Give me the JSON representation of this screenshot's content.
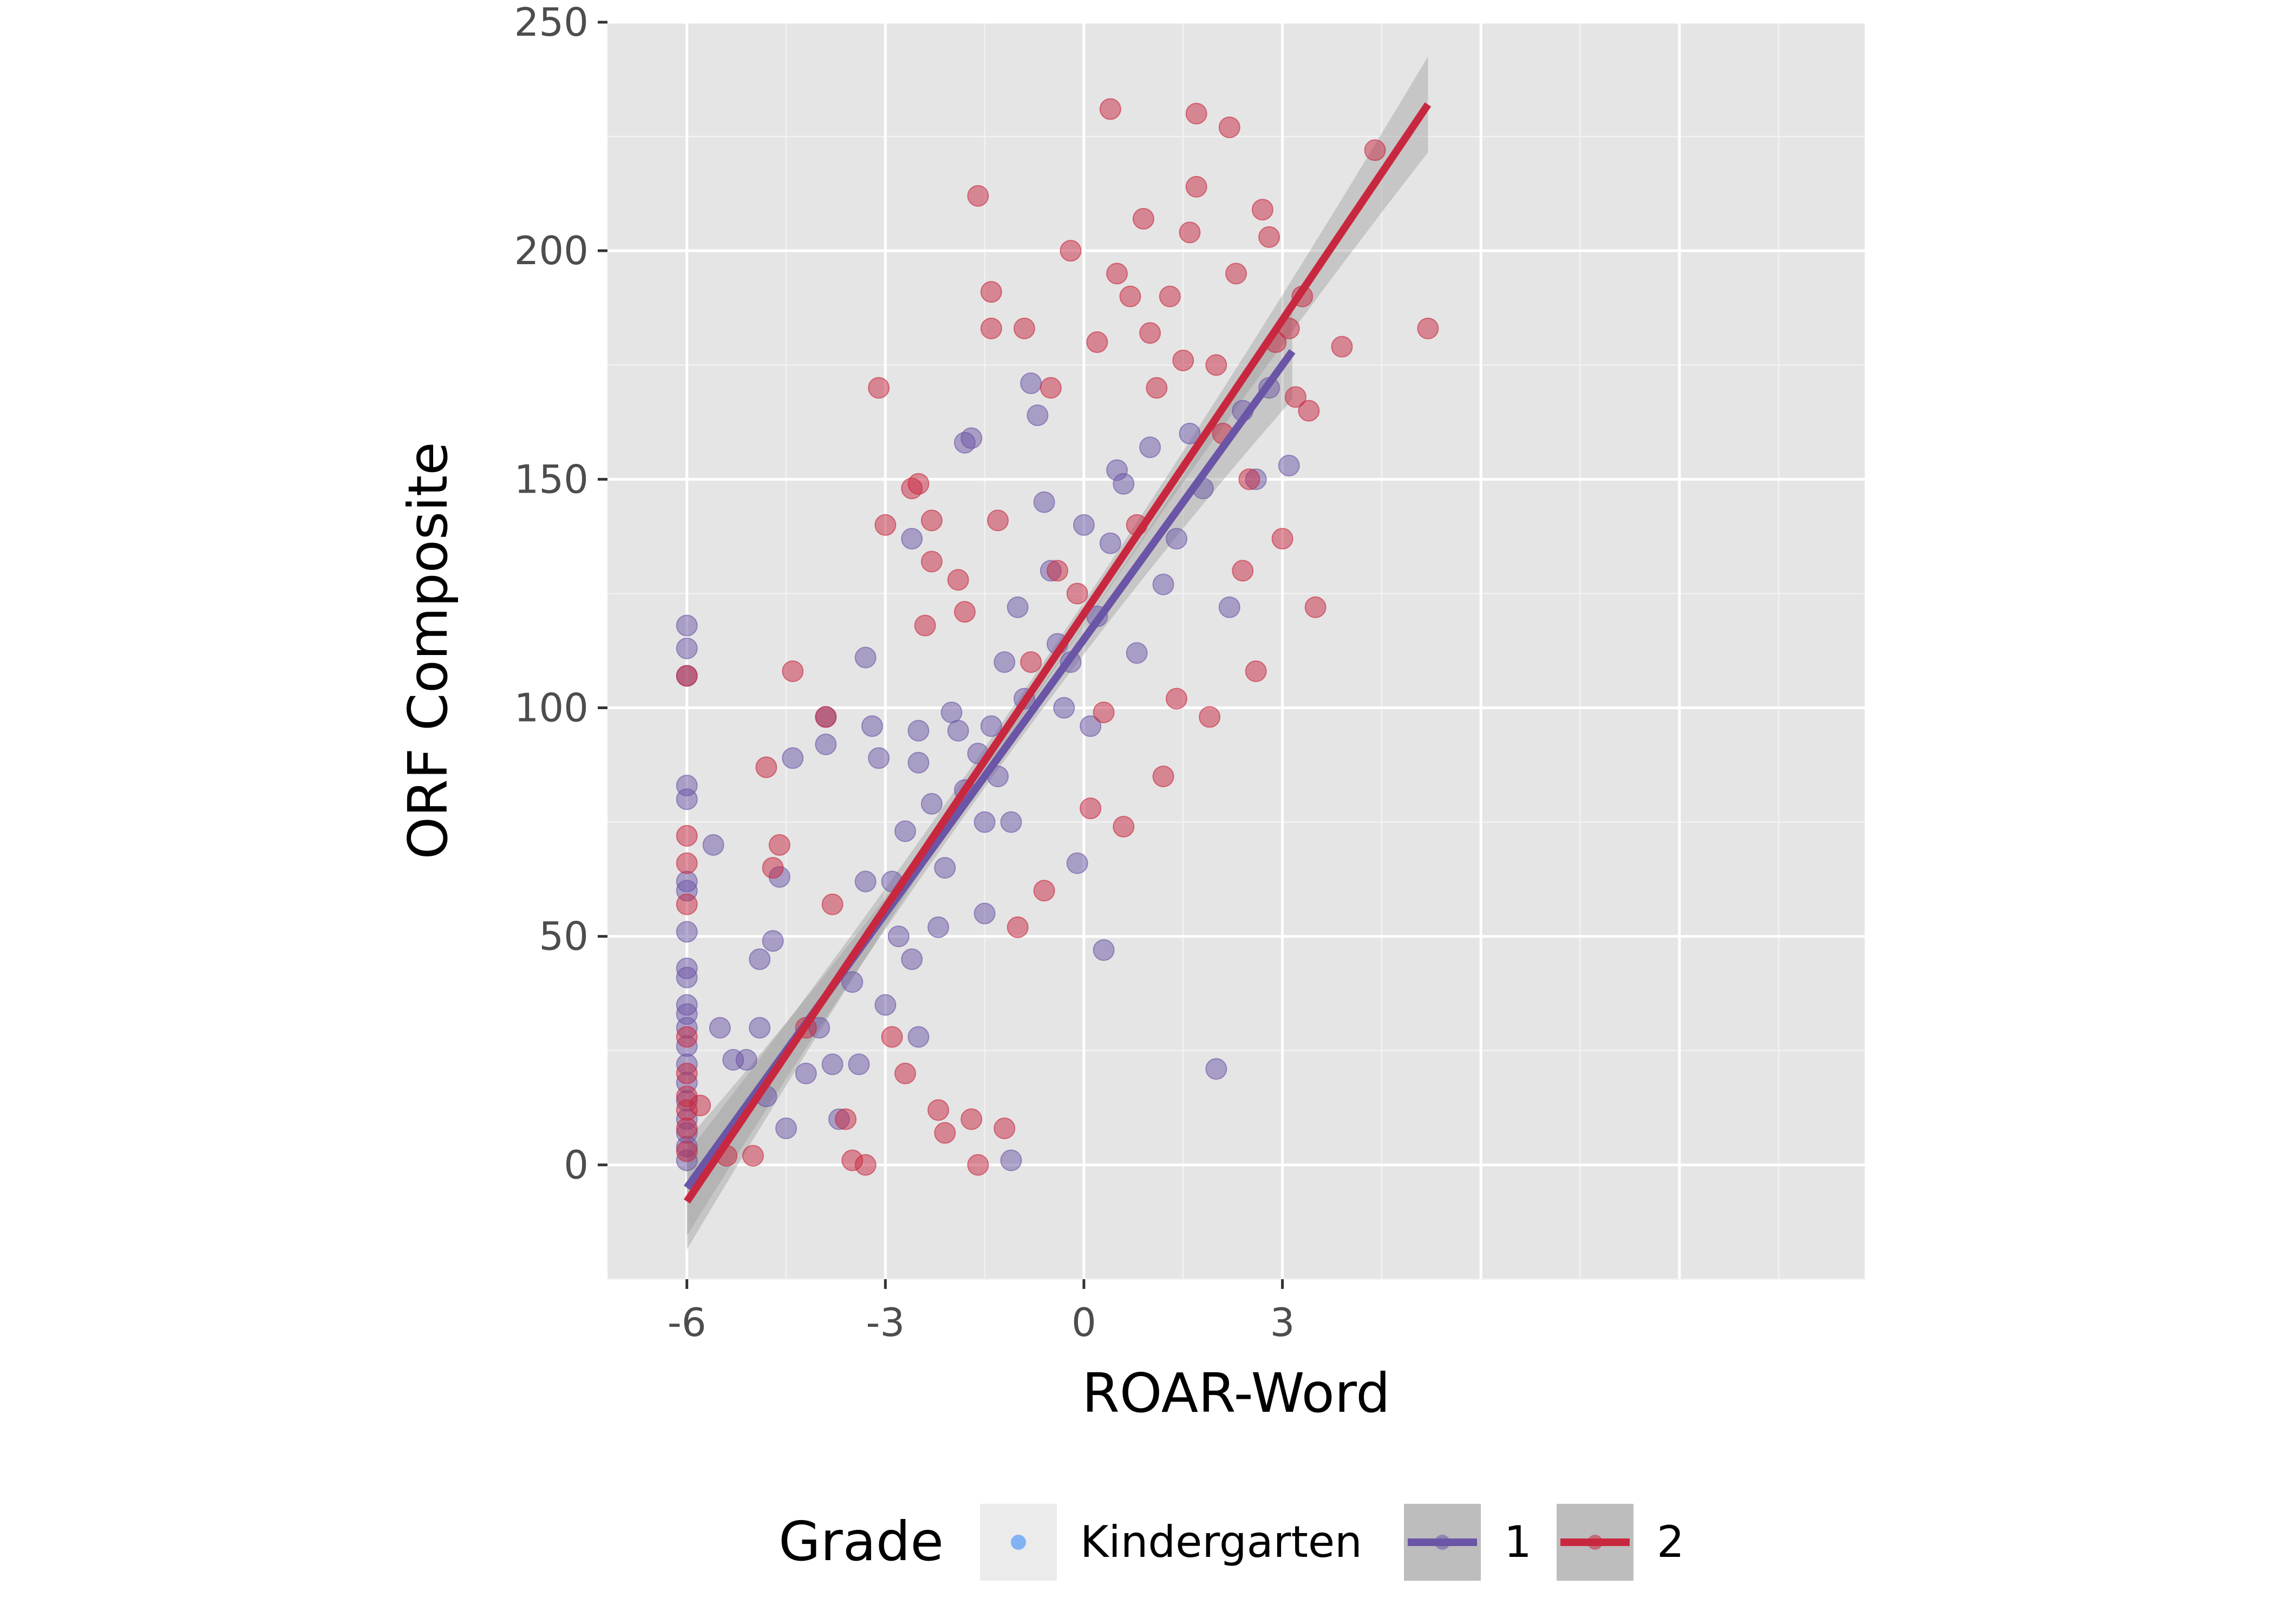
{
  "chart_data": {
    "type": "scatter",
    "title": "",
    "xlabel": "ROAR-Word",
    "ylabel": "ORF Composite",
    "xlim": [
      -7.2,
      11.8
    ],
    "ylim": [
      -25,
      250
    ],
    "x_ticks": [
      -6,
      -3,
      0,
      3
    ],
    "x_tick_labels": [
      "-6",
      "-3",
      "0",
      "3"
    ],
    "y_ticks": [
      0,
      50,
      100,
      150,
      200,
      250
    ],
    "y_tick_labels": [
      "0",
      "50",
      "100",
      "150",
      "200",
      "250"
    ],
    "grid": true,
    "panel_background": "#e5e5e5",
    "legend": {
      "title": "Grade",
      "position": "bottom",
      "entries": [
        {
          "label": "Kindergarten",
          "color": "#6fa8f5",
          "has_line": false
        },
        {
          "label": "1",
          "color": "#6b55a6",
          "has_line": true
        },
        {
          "label": "2",
          "color": "#c8283f",
          "has_line": true
        }
      ]
    },
    "series": [
      {
        "name": "1",
        "color": "#6b55a6",
        "points": [
          [
            -6,
            118
          ],
          [
            -6,
            113
          ],
          [
            -6,
            107
          ],
          [
            -6,
            83
          ],
          [
            -6,
            80
          ],
          [
            -6,
            62
          ],
          [
            -6,
            60
          ],
          [
            -6,
            51
          ],
          [
            -6,
            43
          ],
          [
            -6,
            41
          ],
          [
            -6,
            35
          ],
          [
            -6,
            33
          ],
          [
            -6,
            30
          ],
          [
            -6,
            26
          ],
          [
            -6,
            22
          ],
          [
            -6,
            18
          ],
          [
            -6,
            14
          ],
          [
            -6,
            10
          ],
          [
            -6,
            7
          ],
          [
            -6,
            4
          ],
          [
            -6,
            1
          ],
          [
            -5.6,
            70
          ],
          [
            -5.5,
            30
          ],
          [
            -5.3,
            23
          ],
          [
            -5.1,
            23
          ],
          [
            -4.9,
            45
          ],
          [
            -4.9,
            30
          ],
          [
            -4.4,
            89
          ],
          [
            -4.6,
            63
          ],
          [
            -4.7,
            49
          ],
          [
            -4.8,
            15
          ],
          [
            -4.5,
            8
          ],
          [
            -4.2,
            20
          ],
          [
            -4.0,
            30
          ],
          [
            -3.9,
            98
          ],
          [
            -3.9,
            92
          ],
          [
            -3.8,
            22
          ],
          [
            -3.7,
            10
          ],
          [
            -3.5,
            40
          ],
          [
            -3.4,
            22
          ],
          [
            -3.3,
            62
          ],
          [
            -3.3,
            111
          ],
          [
            -3.2,
            96
          ],
          [
            -3.1,
            89
          ],
          [
            -3.0,
            35
          ],
          [
            -2.9,
            62
          ],
          [
            -2.8,
            50
          ],
          [
            -2.7,
            73
          ],
          [
            -2.6,
            45
          ],
          [
            -2.6,
            137
          ],
          [
            -2.5,
            95
          ],
          [
            -2.5,
            88
          ],
          [
            -2.5,
            28
          ],
          [
            -2.3,
            79
          ],
          [
            -2.2,
            52
          ],
          [
            -2.1,
            65
          ],
          [
            -2.0,
            99
          ],
          [
            -1.9,
            95
          ],
          [
            -1.8,
            82
          ],
          [
            -1.8,
            158
          ],
          [
            -1.7,
            159
          ],
          [
            -1.6,
            90
          ],
          [
            -1.5,
            75
          ],
          [
            -1.5,
            55
          ],
          [
            -1.4,
            96
          ],
          [
            -1.3,
            85
          ],
          [
            -1.2,
            110
          ],
          [
            -1.1,
            1
          ],
          [
            -1.1,
            75
          ],
          [
            -1.0,
            122
          ],
          [
            -0.9,
            102
          ],
          [
            -0.8,
            171
          ],
          [
            -0.7,
            164
          ],
          [
            -0.6,
            145
          ],
          [
            -0.5,
            130
          ],
          [
            -0.4,
            114
          ],
          [
            -0.3,
            100
          ],
          [
            -0.2,
            110
          ],
          [
            -0.1,
            66
          ],
          [
            0.0,
            140
          ],
          [
            0.1,
            96
          ],
          [
            0.2,
            120
          ],
          [
            0.3,
            47
          ],
          [
            0.4,
            136
          ],
          [
            0.5,
            152
          ],
          [
            0.6,
            149
          ],
          [
            0.8,
            112
          ],
          [
            1.0,
            157
          ],
          [
            1.2,
            127
          ],
          [
            1.4,
            137
          ],
          [
            1.6,
            160
          ],
          [
            1.8,
            148
          ],
          [
            2.0,
            21
          ],
          [
            2.2,
            122
          ],
          [
            2.4,
            165
          ],
          [
            2.6,
            150
          ],
          [
            3.1,
            153
          ],
          [
            2.8,
            170
          ]
        ]
      },
      {
        "name": "2",
        "color": "#c8283f",
        "points": [
          [
            -6,
            107
          ],
          [
            -6,
            72
          ],
          [
            -6,
            66
          ],
          [
            -6,
            57
          ],
          [
            -6,
            28
          ],
          [
            -6,
            20
          ],
          [
            -6,
            15
          ],
          [
            -6,
            12
          ],
          [
            -6,
            8
          ],
          [
            -6,
            3
          ],
          [
            -5.8,
            13
          ],
          [
            -5.4,
            2
          ],
          [
            -5.0,
            2
          ],
          [
            -4.8,
            87
          ],
          [
            -4.7,
            65
          ],
          [
            -4.6,
            70
          ],
          [
            -4.4,
            108
          ],
          [
            -4.2,
            30
          ],
          [
            -3.9,
            98
          ],
          [
            -3.8,
            57
          ],
          [
            -3.6,
            10
          ],
          [
            -3.5,
            1
          ],
          [
            -3.3,
            0
          ],
          [
            -3.1,
            170
          ],
          [
            -3.0,
            140
          ],
          [
            -2.9,
            28
          ],
          [
            -2.7,
            20
          ],
          [
            -2.6,
            148
          ],
          [
            -2.5,
            149
          ],
          [
            -2.4,
            118
          ],
          [
            -2.3,
            141
          ],
          [
            -2.3,
            132
          ],
          [
            -2.2,
            12
          ],
          [
            -2.1,
            7
          ],
          [
            -1.9,
            128
          ],
          [
            -1.8,
            121
          ],
          [
            -1.7,
            10
          ],
          [
            -1.6,
            0
          ],
          [
            -1.6,
            212
          ],
          [
            -1.4,
            191
          ],
          [
            -1.4,
            183
          ],
          [
            -1.3,
            141
          ],
          [
            -1.2,
            8
          ],
          [
            -1.0,
            52
          ],
          [
            -0.9,
            183
          ],
          [
            -0.8,
            110
          ],
          [
            -0.6,
            60
          ],
          [
            -0.5,
            170
          ],
          [
            -0.4,
            130
          ],
          [
            -0.2,
            200
          ],
          [
            -0.1,
            125
          ],
          [
            0.1,
            78
          ],
          [
            0.2,
            180
          ],
          [
            0.3,
            99
          ],
          [
            0.4,
            231
          ],
          [
            0.5,
            195
          ],
          [
            0.6,
            74
          ],
          [
            0.7,
            190
          ],
          [
            0.8,
            140
          ],
          [
            0.9,
            207
          ],
          [
            1.0,
            182
          ],
          [
            1.1,
            170
          ],
          [
            1.2,
            85
          ],
          [
            1.3,
            190
          ],
          [
            1.4,
            102
          ],
          [
            1.5,
            176
          ],
          [
            1.6,
            204
          ],
          [
            1.7,
            230
          ],
          [
            1.7,
            214
          ],
          [
            1.9,
            98
          ],
          [
            2.0,
            175
          ],
          [
            2.1,
            160
          ],
          [
            2.2,
            227
          ],
          [
            2.3,
            195
          ],
          [
            2.4,
            130
          ],
          [
            2.5,
            150
          ],
          [
            2.6,
            108
          ],
          [
            2.7,
            209
          ],
          [
            2.8,
            203
          ],
          [
            2.9,
            180
          ],
          [
            3.0,
            137
          ],
          [
            3.1,
            183
          ],
          [
            3.2,
            168
          ],
          [
            3.3,
            190
          ],
          [
            3.4,
            165
          ],
          [
            3.5,
            122
          ],
          [
            3.9,
            179
          ],
          [
            4.4,
            222
          ],
          [
            5.2,
            183
          ]
        ]
      }
    ],
    "trend_lines": [
      {
        "series": "1",
        "x": [
          -6,
          3.15
        ],
        "y": [
          -5,
          178
        ],
        "color": "#6b55a6"
      },
      {
        "series": "2",
        "x": [
          -6,
          5.2
        ],
        "y": [
          -8,
          232
        ],
        "color": "#c8283f"
      }
    ]
  }
}
